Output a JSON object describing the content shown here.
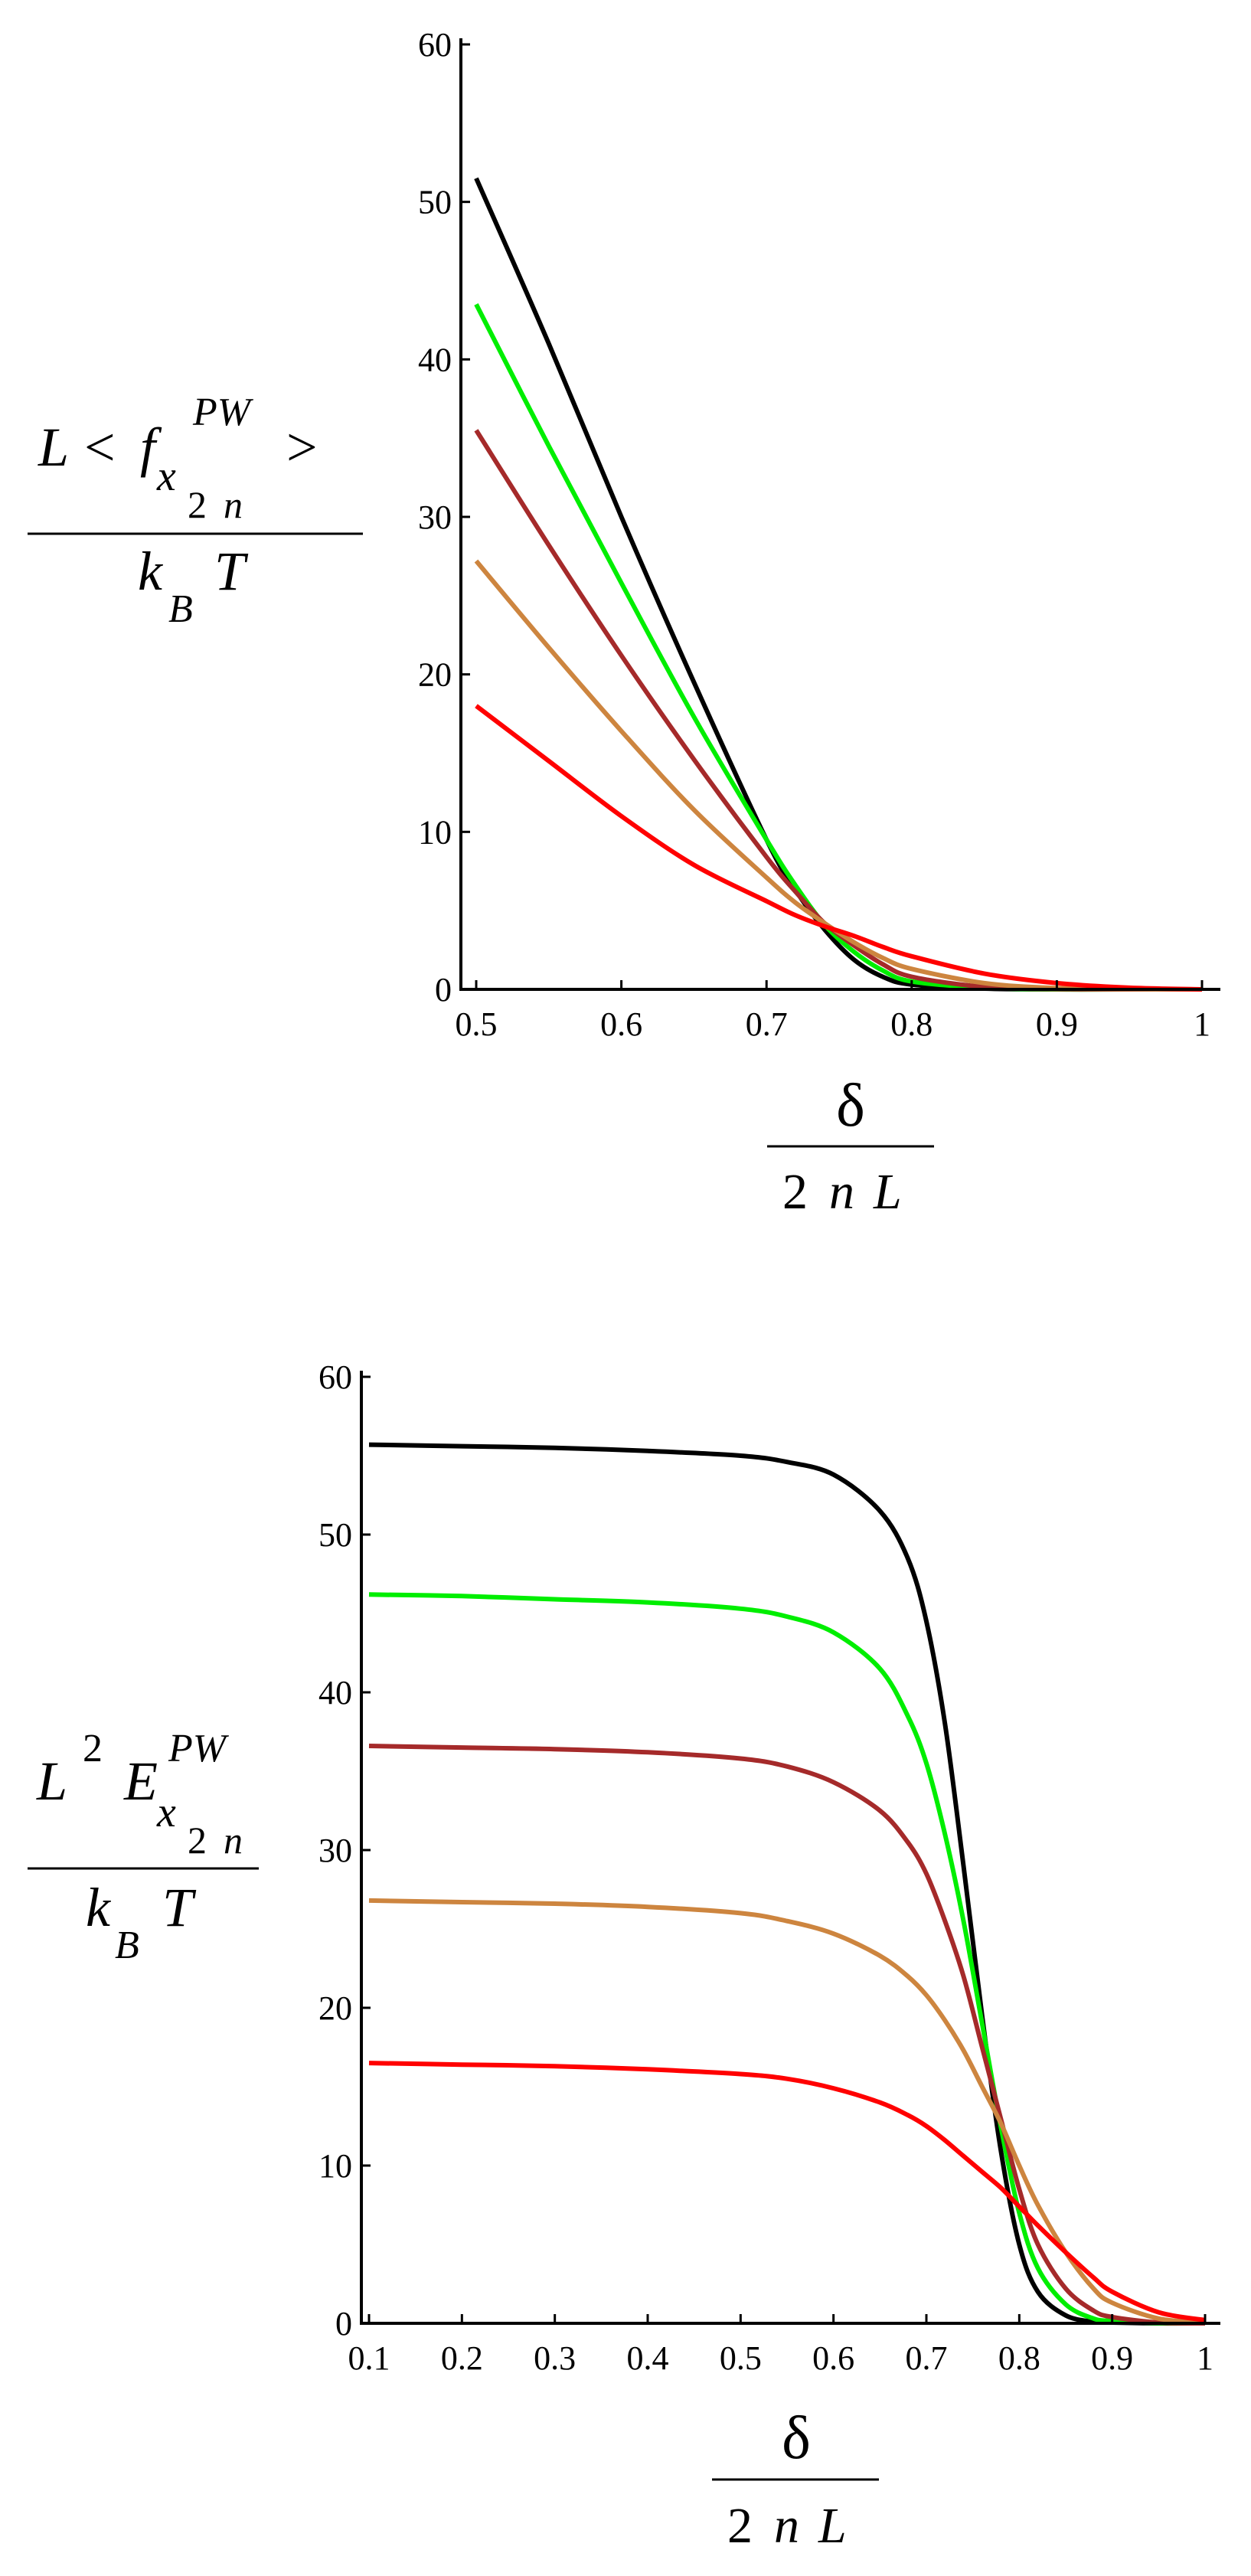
{
  "chart_data": [
    {
      "type": "line",
      "title": "",
      "ylabel": {
        "numerator": {
          "L": "L",
          "lt": "<",
          "f": "f",
          "sup": "PW",
          "x": "x",
          "sub2": "2",
          "subn": "n",
          "gt": ">"
        },
        "denominator": {
          "k": "k",
          "B": "B",
          "T": "T"
        }
      },
      "xlabel": {
        "numerator": "δ",
        "denominator": {
          "two": "2",
          "n": "n",
          "L": "L"
        }
      },
      "xlim": [
        0.5,
        1.0
      ],
      "ylim": [
        0,
        60
      ],
      "xticks": [
        "0.5",
        "0.6",
        "0.7",
        "0.8",
        "0.9",
        "1"
      ],
      "yticks": [
        "0",
        "10",
        "20",
        "30",
        "40",
        "50",
        "60"
      ],
      "grid": false,
      "legend": "none",
      "x": [
        0.5,
        0.55,
        0.6,
        0.65,
        0.7,
        0.72,
        0.74,
        0.76,
        0.78,
        0.8,
        0.85,
        0.9,
        0.95,
        1.0
      ],
      "series": [
        {
          "color": "#000000",
          "values": [
            51.5,
            41.0,
            30.0,
            19.5,
            9.5,
            6.3,
            3.8,
            1.9,
            0.8,
            0.3,
            0.05,
            0.0,
            0.0,
            0.0
          ]
        },
        {
          "color": "#00ee00",
          "values": [
            43.5,
            34.5,
            25.8,
            17.3,
            9.5,
            6.6,
            4.1,
            2.4,
            1.2,
            0.5,
            0.1,
            0.0,
            0.0,
            0.0
          ]
        },
        {
          "color": "#a52a2a",
          "values": [
            35.5,
            28.2,
            21.2,
            14.6,
            8.4,
            6.2,
            4.2,
            2.8,
            1.6,
            0.8,
            0.15,
            0.02,
            0.0,
            0.0
          ]
        },
        {
          "color": "#cd853f",
          "values": [
            27.2,
            21.7,
            16.4,
            11.4,
            7.1,
            5.5,
            4.2,
            3.0,
            2.0,
            1.3,
            0.4,
            0.08,
            0.02,
            0.0
          ]
        },
        {
          "color": "#ff0000",
          "values": [
            18.0,
            14.5,
            11.0,
            7.9,
            5.6,
            4.7,
            4.0,
            3.4,
            2.7,
            2.1,
            1.0,
            0.4,
            0.1,
            0.0
          ]
        }
      ]
    },
    {
      "type": "line",
      "title": "",
      "ylabel": {
        "numerator": {
          "L": "L",
          "sup2": "2",
          "E": "E",
          "sup": "PW",
          "x": "x",
          "sub2": "2",
          "subn": "n"
        },
        "denominator": {
          "k": "k",
          "B": "B",
          "T": "T"
        }
      },
      "xlabel": {
        "numerator": "δ",
        "denominator": {
          "two": "2",
          "n": "n",
          "L": "L"
        }
      },
      "xlim": [
        0.1,
        1.0
      ],
      "ylim": [
        0,
        60
      ],
      "xticks": [
        "0.1",
        "0.2",
        "0.3",
        "0.4",
        "0.5",
        "0.6",
        "0.7",
        "0.8",
        "0.9",
        "1"
      ],
      "yticks": [
        "0",
        "10",
        "20",
        "30",
        "40",
        "50",
        "60"
      ],
      "grid": false,
      "legend": "none",
      "x": [
        0.1,
        0.2,
        0.3,
        0.4,
        0.5,
        0.55,
        0.6,
        0.65,
        0.68,
        0.7,
        0.72,
        0.74,
        0.76,
        0.78,
        0.8,
        0.82,
        0.85,
        0.88,
        0.9,
        0.95,
        1.0
      ],
      "series": [
        {
          "color": "#000000",
          "values": [
            55.7,
            55.6,
            55.5,
            55.3,
            55.0,
            54.6,
            53.8,
            51.5,
            48.5,
            44.5,
            38.0,
            29.0,
            19.5,
            11.0,
            5.0,
            2.0,
            0.5,
            0.1,
            0.05,
            0.0,
            0.0
          ]
        },
        {
          "color": "#00ee00",
          "values": [
            46.2,
            46.1,
            45.9,
            45.7,
            45.3,
            44.8,
            43.8,
            41.5,
            38.5,
            35.5,
            31.0,
            25.5,
            19.0,
            12.5,
            7.0,
            3.5,
            1.2,
            0.3,
            0.15,
            0.02,
            0.0
          ]
        },
        {
          "color": "#a52a2a",
          "values": [
            36.6,
            36.5,
            36.4,
            36.2,
            35.8,
            35.3,
            34.3,
            32.5,
            30.5,
            28.5,
            25.5,
            22.0,
            17.5,
            13.0,
            8.5,
            5.0,
            2.2,
            0.8,
            0.4,
            0.05,
            0.0
          ]
        },
        {
          "color": "#cd853f",
          "values": [
            26.8,
            26.7,
            26.6,
            26.4,
            26.0,
            25.5,
            24.7,
            23.3,
            22.0,
            20.8,
            19.2,
            17.3,
            15.0,
            12.7,
            10.0,
            7.5,
            4.5,
            2.2,
            1.3,
            0.3,
            0.05
          ]
        },
        {
          "color": "#ff0000",
          "values": [
            16.5,
            16.4,
            16.3,
            16.1,
            15.8,
            15.5,
            14.9,
            14.0,
            13.2,
            12.5,
            11.6,
            10.6,
            9.6,
            8.6,
            7.4,
            6.2,
            4.5,
            2.9,
            2.0,
            0.7,
            0.2
          ]
        }
      ]
    }
  ]
}
